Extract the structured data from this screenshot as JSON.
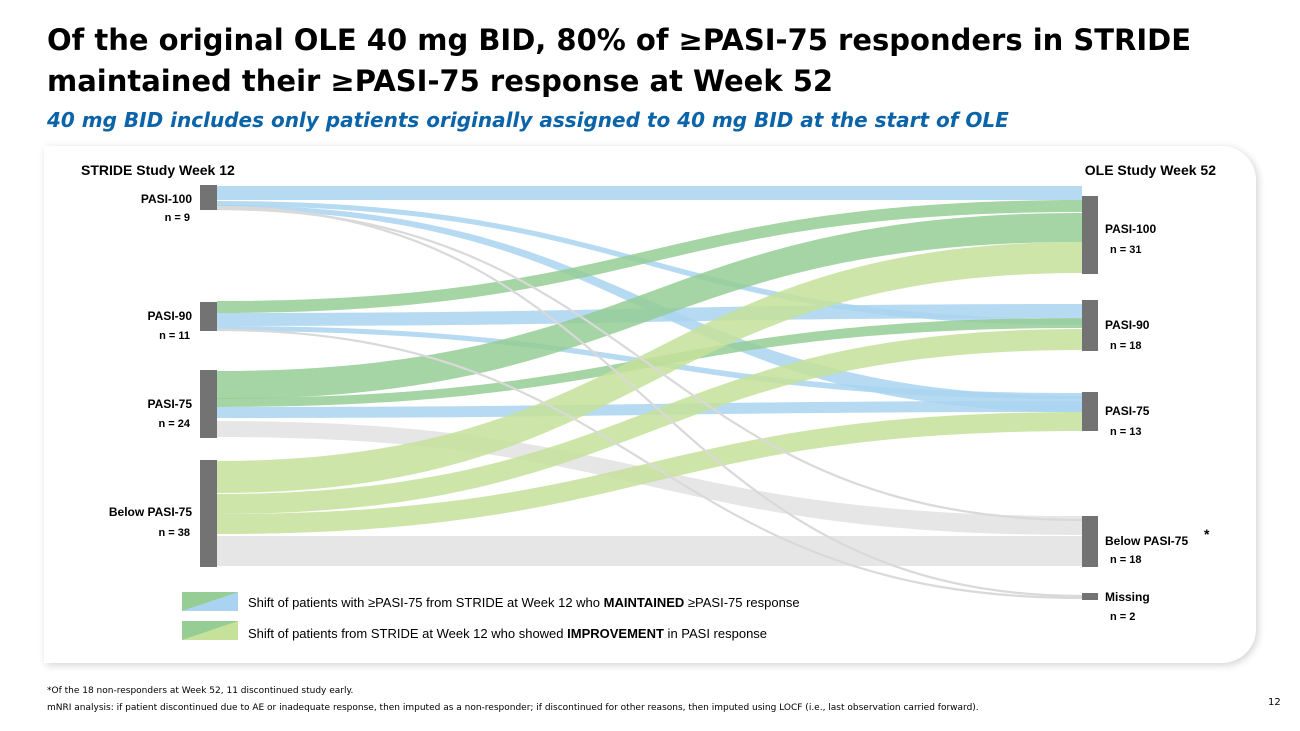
{
  "title": "Of the original OLE 40 mg BID, 80% of ≥PASI-75 responders in STRIDE maintained their ≥PASI-75 response at Week 52",
  "subtitle": "40 mg BID includes only patients originally assigned to 40 mg BID at the start of OLE",
  "left_header": "STRIDE Study Week 12",
  "right_header": "OLE Study Week 52",
  "left_nodes": [
    {
      "id": "L100",
      "name": "PASI-100",
      "n": "n = 9",
      "value": 9
    },
    {
      "id": "L90",
      "name": "PASI-90",
      "n": "n = 11",
      "value": 11
    },
    {
      "id": "L75",
      "name": "PASI-75",
      "n": "n = 24",
      "value": 24
    },
    {
      "id": "Lb",
      "name": "Below PASI-75",
      "n": "n = 38",
      "value": 38
    }
  ],
  "right_nodes": [
    {
      "id": "R100",
      "name": "PASI-100",
      "n": "n = 31",
      "value": 31
    },
    {
      "id": "R90",
      "name": "PASI-90",
      "n": "n = 18",
      "value": 18
    },
    {
      "id": "R75",
      "name": "PASI-75",
      "n": "n = 13",
      "value": 13
    },
    {
      "id": "Rb",
      "name": "Below PASI-75",
      "n": "n = 18",
      "value": 18,
      "marker": "*"
    },
    {
      "id": "Rm",
      "name": "Missing",
      "n": "n = 2",
      "value": 2
    }
  ],
  "flow_categories": {
    "maintained": {
      "color": "#a9d3f0"
    },
    "improvement_from_responder": {
      "color": "#95cd95"
    },
    "improvement_from_nonresponder": {
      "color": "#c5e19a"
    },
    "worsened": {
      "color": "#e2e2e2"
    }
  },
  "legend": [
    {
      "prefix": "Shift of patients with ≥PASI-75 from STRIDE at Week 12 who ",
      "bold": "MAINTAINED",
      "suffix": " ≥PASI-75 response",
      "colors": [
        "#95cd95",
        "#a9d3f0"
      ]
    },
    {
      "prefix": "Shift of patients from STRIDE at Week 12 who showed ",
      "bold": "IMPROVEMENT",
      "suffix": " in PASI response",
      "colors": [
        "#95cd95",
        "#c5e19a"
      ]
    }
  ],
  "footnote_1": "*Of the 18 non-responders at Week 52, 11 discontinued study early.",
  "footnote_2": "mNRI analysis: if patient discontinued due to AE or inadequate response, then imputed as a non-responder; if discontinued for other reasons, then imputed using LOCF (i.e., last observation carried forward).",
  "page_number": "12"
}
